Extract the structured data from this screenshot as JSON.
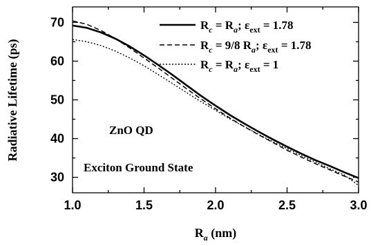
{
  "chart_data": {
    "type": "line",
    "xlabel_main": "R",
    "xlabel_sub": "a",
    "xlabel_unit": " (nm)",
    "ylabel": "Radiative Lifetime (ps)",
    "xlim": [
      1.0,
      3.0
    ],
    "ylim": [
      26,
      74
    ],
    "xticks": [
      1.0,
      1.5,
      2.0,
      2.5,
      3.0
    ],
    "xtick_labels": [
      "1.0",
      "1.5",
      "2.0",
      "2.5",
      "3.0"
    ],
    "yticks": [
      30,
      40,
      50,
      60,
      70
    ],
    "ytick_labels": [
      "30",
      "40",
      "50",
      "60",
      "70"
    ],
    "grid": false,
    "legend_placement": "top-right",
    "annotations": [
      "ZnO QD",
      "Exciton Ground State"
    ],
    "series": [
      {
        "style": "solid",
        "legend": [
          "R",
          "c",
          " = R",
          "a",
          "; ε",
          "ext",
          " = 1.78"
        ],
        "x": [
          1.0,
          1.1,
          1.2,
          1.3,
          1.4,
          1.5,
          1.6,
          1.7,
          1.8,
          1.9,
          2.0,
          2.1,
          2.2,
          2.3,
          2.4,
          2.5,
          2.6,
          2.7,
          2.8,
          2.9,
          3.0
        ],
        "y": [
          69.2,
          68.6,
          67.4,
          65.8,
          63.8,
          61.5,
          59.0,
          56.4,
          53.7,
          51.0,
          48.5,
          46.1,
          43.9,
          41.8,
          39.8,
          37.9,
          36.1,
          34.4,
          32.9,
          31.3,
          29.8
        ]
      },
      {
        "style": "dashed",
        "legend": [
          "R",
          "c",
          " = 9/8 R",
          "a",
          "; ε",
          "ext",
          " = 1.78"
        ],
        "x": [
          1.0,
          1.1,
          1.2,
          1.3,
          1.4,
          1.5,
          1.6,
          1.7,
          1.8,
          1.9,
          2.0,
          2.1,
          2.2,
          2.3,
          2.4,
          2.5,
          2.6,
          2.7,
          2.8,
          2.9,
          3.0
        ],
        "y": [
          70.4,
          69.5,
          67.9,
          65.8,
          63.4,
          60.8,
          58.2,
          55.5,
          52.8,
          50.2,
          47.7,
          45.3,
          43.1,
          41.0,
          39.0,
          37.0,
          35.2,
          33.5,
          31.9,
          30.3,
          28.8
        ]
      },
      {
        "style": "dotted",
        "legend": [
          "R",
          "c",
          " = R",
          "a",
          "; ε",
          "ext",
          " = 1"
        ],
        "x": [
          1.0,
          1.1,
          1.2,
          1.3,
          1.4,
          1.5,
          1.6,
          1.7,
          1.8,
          1.9,
          2.0,
          2.1,
          2.2,
          2.3,
          2.4,
          2.5,
          2.6,
          2.7,
          2.8,
          2.9,
          3.0
        ],
        "y": [
          65.6,
          65.0,
          64.0,
          62.6,
          60.8,
          58.8,
          56.5,
          54.2,
          51.8,
          49.5,
          47.3,
          45.1,
          43.1,
          41.1,
          39.2,
          37.4,
          35.6,
          33.9,
          32.2,
          30.6,
          27.9
        ]
      }
    ]
  }
}
